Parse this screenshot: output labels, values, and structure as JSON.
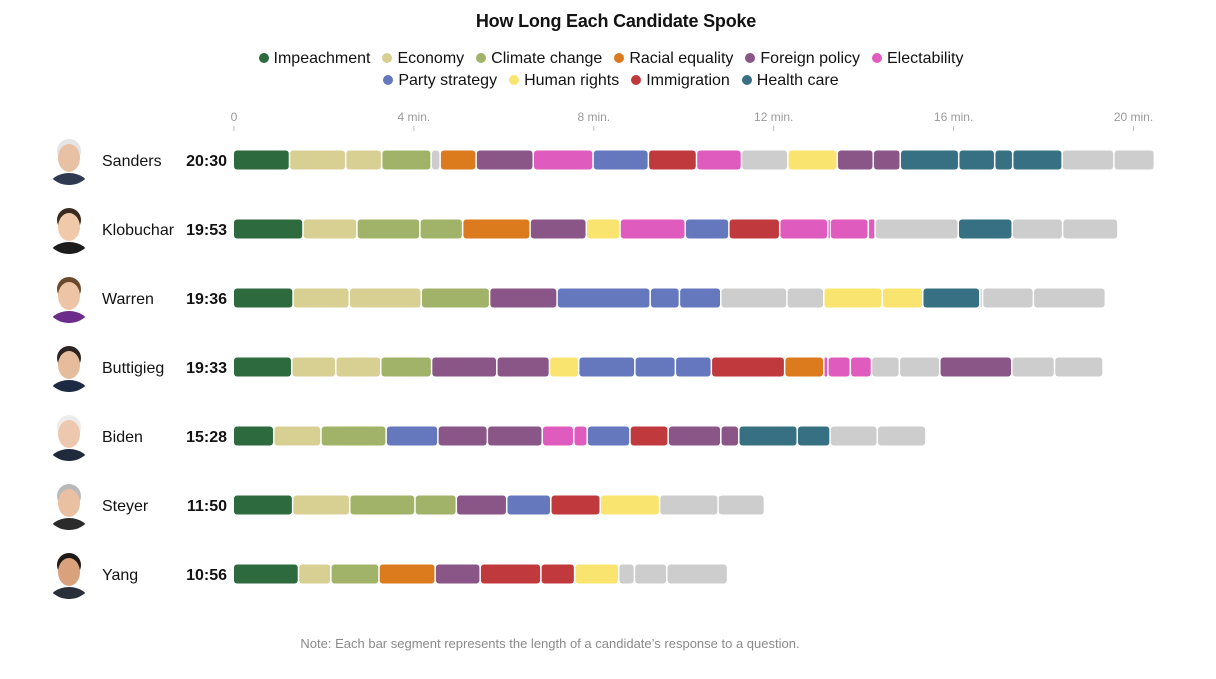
{
  "chart_data": {
    "type": "bar",
    "title": "How Long Each Candidate Spoke",
    "x_ticks": [
      "0",
      "4 min.",
      "8 min.",
      "12 min.",
      "16 min.",
      "20 min."
    ],
    "x_tick_values": [
      0,
      4,
      8,
      12,
      16,
      20
    ],
    "xlim": [
      0,
      20.5
    ],
    "legend_placement": "top",
    "categories": [
      {
        "key": "impeachment",
        "label": "Impeachment",
        "color": "#2d6a3e"
      },
      {
        "key": "economy",
        "label": "Economy",
        "color": "#d8cf93"
      },
      {
        "key": "climate",
        "label": "Climate change",
        "color": "#a1b369"
      },
      {
        "key": "racial",
        "label": "Racial equality",
        "color": "#dc7a1e"
      },
      {
        "key": "foreign",
        "label": "Foreign policy",
        "color": "#8a5688"
      },
      {
        "key": "electability",
        "label": "Electability",
        "color": "#e05bbe"
      },
      {
        "key": "party",
        "label": "Party strategy",
        "color": "#6578be"
      },
      {
        "key": "rights",
        "label": "Human rights",
        "color": "#f8e46f"
      },
      {
        "key": "immigration",
        "label": "Immigration",
        "color": "#c0393c"
      },
      {
        "key": "health",
        "label": "Health care",
        "color": "#377083"
      },
      {
        "key": "other",
        "label": "",
        "color": "#cdcdcd"
      }
    ],
    "candidates": [
      {
        "name": "Sanders",
        "time": "20:30",
        "segments": [
          [
            "impeachment",
            1.25
          ],
          [
            "economy",
            1.25
          ],
          [
            "economy",
            0.8
          ],
          [
            "climate",
            1.1
          ],
          [
            "other",
            0.2
          ],
          [
            "racial",
            0.8
          ],
          [
            "foreign",
            1.27
          ],
          [
            "electability",
            1.33
          ],
          [
            "party",
            1.23
          ],
          [
            "immigration",
            1.07
          ],
          [
            "electability",
            1.0
          ],
          [
            "other",
            1.03
          ],
          [
            "rights",
            1.1
          ],
          [
            "foreign",
            0.8
          ],
          [
            "foreign",
            0.6
          ],
          [
            "health",
            1.3
          ],
          [
            "health",
            0.8
          ],
          [
            "health",
            0.4
          ],
          [
            "health",
            1.1
          ],
          [
            "other",
            1.15
          ],
          [
            "other",
            0.9
          ]
        ]
      },
      {
        "name": "Klobuchar",
        "time": "19:53",
        "segments": [
          [
            "impeachment",
            1.55
          ],
          [
            "economy",
            1.2
          ],
          [
            "climate",
            1.4
          ],
          [
            "climate",
            0.95
          ],
          [
            "racial",
            1.5
          ],
          [
            "foreign",
            1.25
          ],
          [
            "rights",
            0.75
          ],
          [
            "electability",
            1.45
          ],
          [
            "party",
            0.97
          ],
          [
            "immigration",
            1.13
          ],
          [
            "electability",
            1.07
          ],
          [
            "electability",
            0.05
          ],
          [
            "electability",
            0.85
          ],
          [
            "electability",
            0.15
          ],
          [
            "other",
            1.85
          ],
          [
            "health",
            1.2
          ],
          [
            "other",
            1.12
          ],
          [
            "other",
            1.23
          ]
        ]
      },
      {
        "name": "Warren",
        "time": "19:36",
        "segments": [
          [
            "impeachment",
            1.33
          ],
          [
            "economy",
            1.25
          ],
          [
            "economy",
            1.6
          ],
          [
            "climate",
            1.52
          ],
          [
            "foreign",
            1.5
          ],
          [
            "party",
            2.07
          ],
          [
            "party",
            0.65
          ],
          [
            "party",
            0.92
          ],
          [
            "other",
            1.47
          ],
          [
            "other",
            0.82
          ],
          [
            "rights",
            1.3
          ],
          [
            "rights",
            0.9
          ],
          [
            "health",
            1.27
          ],
          [
            "other",
            0.06
          ],
          [
            "other",
            1.13
          ],
          [
            "other",
            1.6
          ]
        ]
      },
      {
        "name": "Buttigieg",
        "time": "19:33",
        "segments": [
          [
            "impeachment",
            1.3
          ],
          [
            "economy",
            0.98
          ],
          [
            "economy",
            1.0
          ],
          [
            "climate",
            1.13
          ],
          [
            "foreign",
            1.45
          ],
          [
            "foreign",
            1.17
          ],
          [
            "rights",
            0.65
          ],
          [
            "party",
            1.25
          ],
          [
            "party",
            0.9
          ],
          [
            "party",
            0.8
          ],
          [
            "immigration",
            1.63
          ],
          [
            "racial",
            0.87
          ],
          [
            "electability",
            0.09
          ],
          [
            "electability",
            0.5
          ],
          [
            "electability",
            0.47
          ],
          [
            "other",
            0.62
          ],
          [
            "other",
            0.9
          ],
          [
            "foreign",
            1.6
          ],
          [
            "other",
            0.95
          ],
          [
            "other",
            1.08
          ]
        ]
      },
      {
        "name": "Biden",
        "time": "15:28",
        "segments": [
          [
            "impeachment",
            0.9
          ],
          [
            "economy",
            1.05
          ],
          [
            "climate",
            1.45
          ],
          [
            "party",
            1.15
          ],
          [
            "foreign",
            1.1
          ],
          [
            "foreign",
            1.22
          ],
          [
            "electability",
            0.7
          ],
          [
            "electability",
            0.3
          ],
          [
            "party",
            0.95
          ],
          [
            "immigration",
            0.85
          ],
          [
            "foreign",
            1.17
          ],
          [
            "foreign",
            0.4
          ],
          [
            "health",
            1.3
          ],
          [
            "health",
            0.73
          ],
          [
            "other",
            1.05
          ],
          [
            "other",
            1.08
          ]
        ]
      },
      {
        "name": "Steyer",
        "time": "11:50",
        "segments": [
          [
            "impeachment",
            1.32
          ],
          [
            "economy",
            1.27
          ],
          [
            "climate",
            1.45
          ],
          [
            "climate",
            0.92
          ],
          [
            "foreign",
            1.12
          ],
          [
            "party",
            0.98
          ],
          [
            "immigration",
            1.1
          ],
          [
            "rights",
            1.32
          ],
          [
            "other",
            1.3
          ],
          [
            "other",
            1.03
          ]
        ]
      },
      {
        "name": "Yang",
        "time": "10:56",
        "segments": [
          [
            "impeachment",
            1.45
          ],
          [
            "economy",
            0.72
          ],
          [
            "climate",
            1.07
          ],
          [
            "racial",
            1.25
          ],
          [
            "foreign",
            1.0
          ],
          [
            "immigration",
            1.35
          ],
          [
            "immigration",
            0.75
          ],
          [
            "rights",
            0.98
          ],
          [
            "other",
            0.35
          ],
          [
            "other",
            0.72
          ],
          [
            "other",
            1.35
          ]
        ]
      }
    ]
  },
  "note": "Note: Each bar segment represents the length of a candidate’s response to a question.",
  "avatars": [
    "person-photo",
    "person-photo",
    "person-photo",
    "person-photo",
    "person-photo",
    "person-photo",
    "person-photo"
  ]
}
